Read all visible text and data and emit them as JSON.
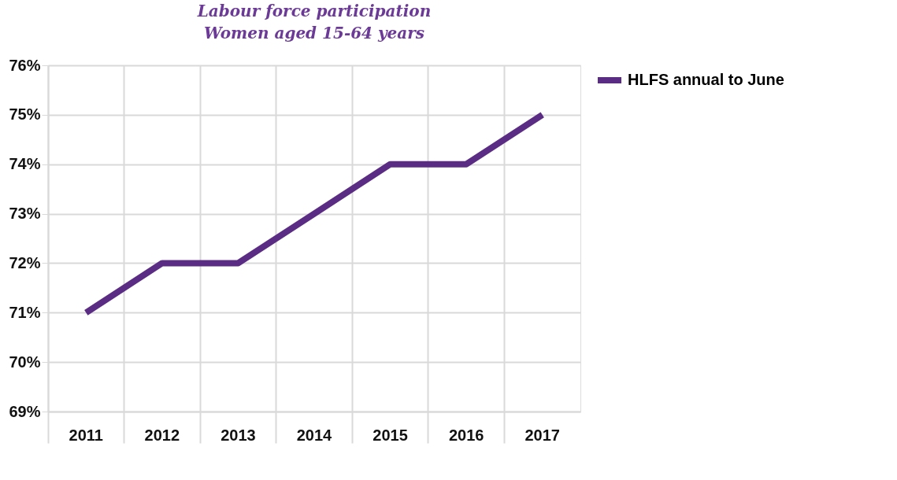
{
  "chart_data": {
    "type": "line",
    "title": "Labour force participation",
    "subtitle": "Women aged 15-64 years",
    "categories": [
      "2011",
      "2012",
      "2013",
      "2014",
      "2015",
      "2016",
      "2017"
    ],
    "series": [
      {
        "name": "HLFS annual to June",
        "color": "#5b2c83",
        "values": [
          71,
          72,
          72,
          73,
          74,
          74,
          75
        ]
      }
    ],
    "ylim": [
      69,
      76
    ],
    "yticks": [
      {
        "value": 69,
        "label": "69%"
      },
      {
        "value": 70,
        "label": "70%"
      },
      {
        "value": 71,
        "label": "71%"
      },
      {
        "value": 72,
        "label": "72%"
      },
      {
        "value": 73,
        "label": "73%"
      },
      {
        "value": 74,
        "label": "74%"
      },
      {
        "value": 75,
        "label": "75%"
      },
      {
        "value": 76,
        "label": "76%"
      }
    ],
    "grid": true,
    "legend": "right",
    "marker": "none",
    "line_style": "solid"
  }
}
